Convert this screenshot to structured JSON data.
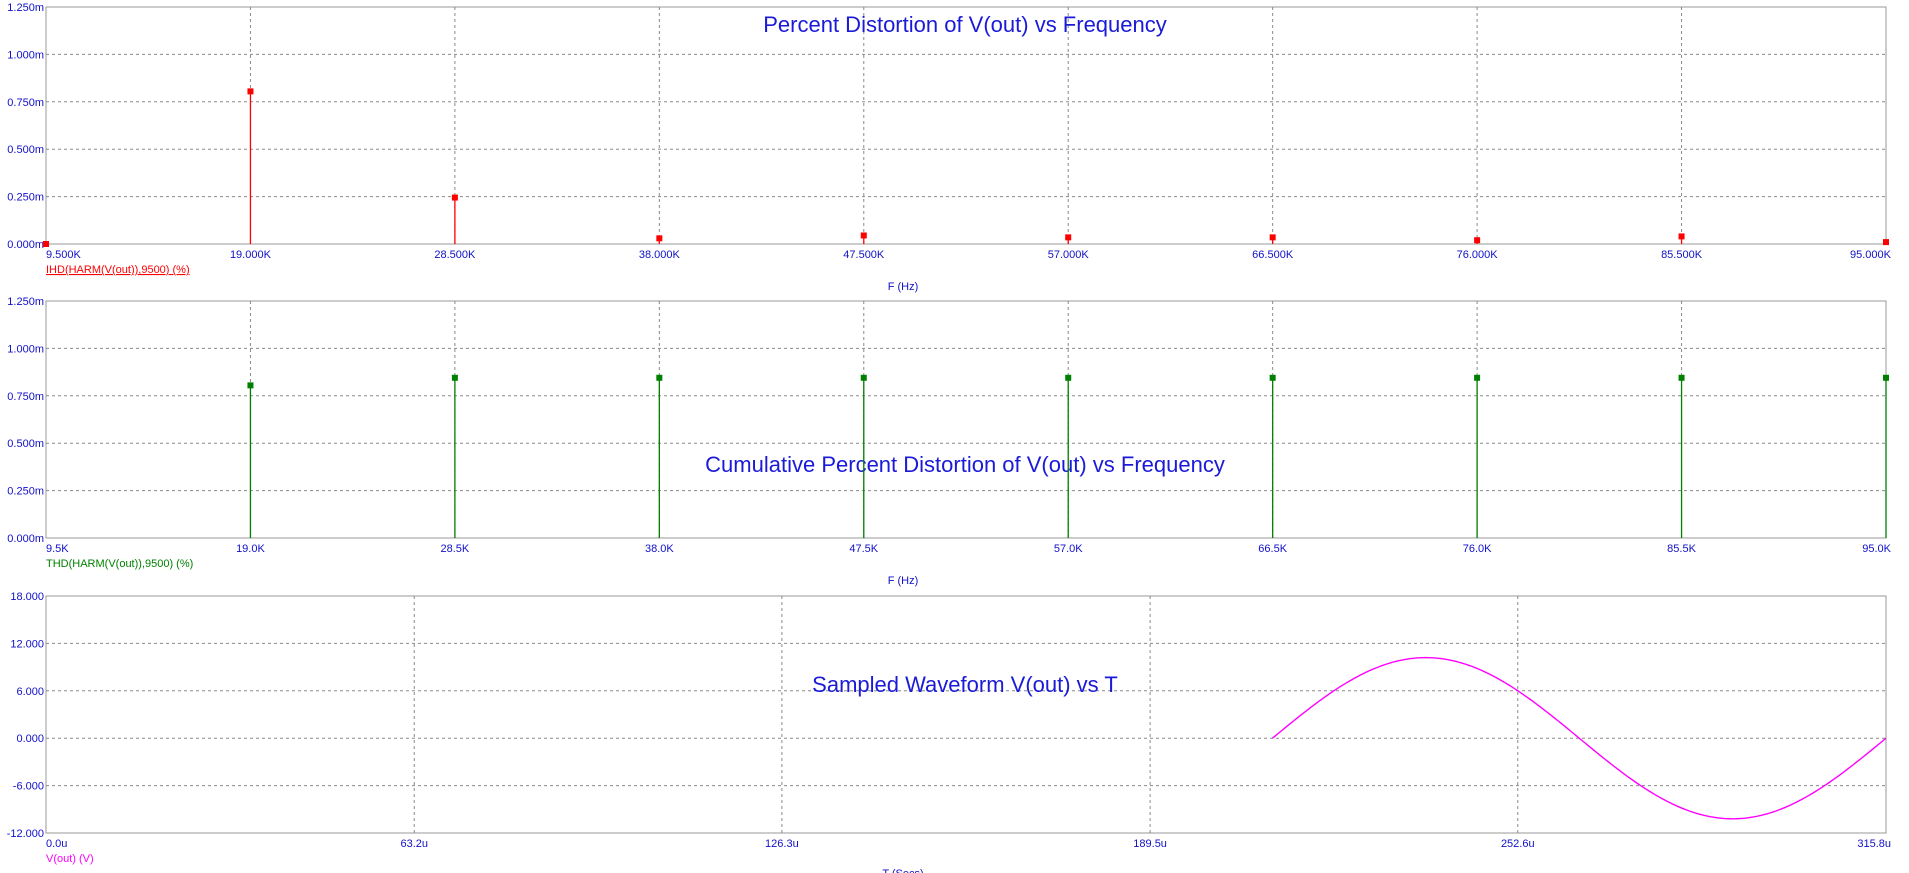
{
  "window_title": "Percent Distortion of V(out) vs Frequency",
  "chart_data": [
    {
      "type": "bar",
      "title": "Percent Distortion of V(out) vs Frequency",
      "xlabel": "F (Hz)",
      "series_label": "IHD(HARM(V(out)),9500) (%)",
      "color": "#ff0000",
      "xlim": [
        9500,
        95000
      ],
      "ylim": [
        0,
        0.00125
      ],
      "xticks": [
        9500,
        19000,
        28500,
        38000,
        47500,
        57000,
        66500,
        76000,
        85500,
        95000
      ],
      "xtick_labels": [
        "9.500K",
        "19.000K",
        "28.500K",
        "38.000K",
        "47.500K",
        "57.000K",
        "66.500K",
        "76.000K",
        "85.500K",
        "95.000K"
      ],
      "yticks": [
        0,
        0.00025,
        0.0005,
        0.00075,
        0.001,
        0.00125
      ],
      "ytick_labels": [
        "0.000m",
        "0.250m",
        "0.500m",
        "0.750m",
        "1.000m",
        "1.250m"
      ],
      "x": [
        9500,
        19000,
        28500,
        38000,
        47500,
        57000,
        66500,
        76000,
        85500,
        95000
      ],
      "values": [
        0,
        0.000805,
        0.000245,
        3e-05,
        4.5e-05,
        3.5e-05,
        3.5e-05,
        2e-05,
        4e-05,
        1e-05
      ]
    },
    {
      "type": "bar",
      "title": "Cumulative Percent Distortion of V(out) vs Frequency",
      "xlabel": "F (Hz)",
      "series_label": "THD(HARM(V(out)),9500) (%)",
      "color": "#008000",
      "xlim": [
        9500,
        95000
      ],
      "ylim": [
        0,
        0.00125
      ],
      "xticks": [
        9500,
        19000,
        28500,
        38000,
        47500,
        57000,
        66500,
        76000,
        85500,
        95000
      ],
      "xtick_labels": [
        "9.5K",
        "19.0K",
        "28.5K",
        "38.0K",
        "47.5K",
        "57.0K",
        "66.5K",
        "76.0K",
        "85.5K",
        "95.0K"
      ],
      "yticks": [
        0,
        0.00025,
        0.0005,
        0.00075,
        0.001,
        0.00125
      ],
      "ytick_labels": [
        "0.000m",
        "0.250m",
        "0.500m",
        "0.750m",
        "1.000m",
        "1.250m"
      ],
      "x": [
        19000,
        28500,
        38000,
        47500,
        57000,
        66500,
        76000,
        85500,
        95000
      ],
      "values": [
        0.000805,
        0.000845,
        0.000845,
        0.000845,
        0.000845,
        0.000845,
        0.000845,
        0.000845,
        0.000845
      ]
    },
    {
      "type": "line",
      "title": "Sampled Waveform  V(out) vs T",
      "xlabel": "T (Secs)",
      "series_label": "V(out) (V)",
      "color": "#ff00ff",
      "xlim": [
        0,
        315.8
      ],
      "ylim": [
        -12,
        18
      ],
      "x_unit": "u",
      "xticks": [
        0,
        63.2,
        126.3,
        189.5,
        252.6,
        315.8
      ],
      "xtick_labels": [
        "0.0u",
        "63.2u",
        "126.3u",
        "189.5u",
        "252.6u",
        "315.8u"
      ],
      "yticks": [
        -12,
        -6,
        0,
        6,
        12,
        18
      ],
      "ytick_labels": [
        "-12.000",
        "-6.000",
        "0.000",
        "6.000",
        "12.000",
        "18.000"
      ],
      "sine": {
        "t_start": 210.5,
        "t_end": 315.8,
        "amplitude": 10.2,
        "offset": 0
      }
    }
  ]
}
